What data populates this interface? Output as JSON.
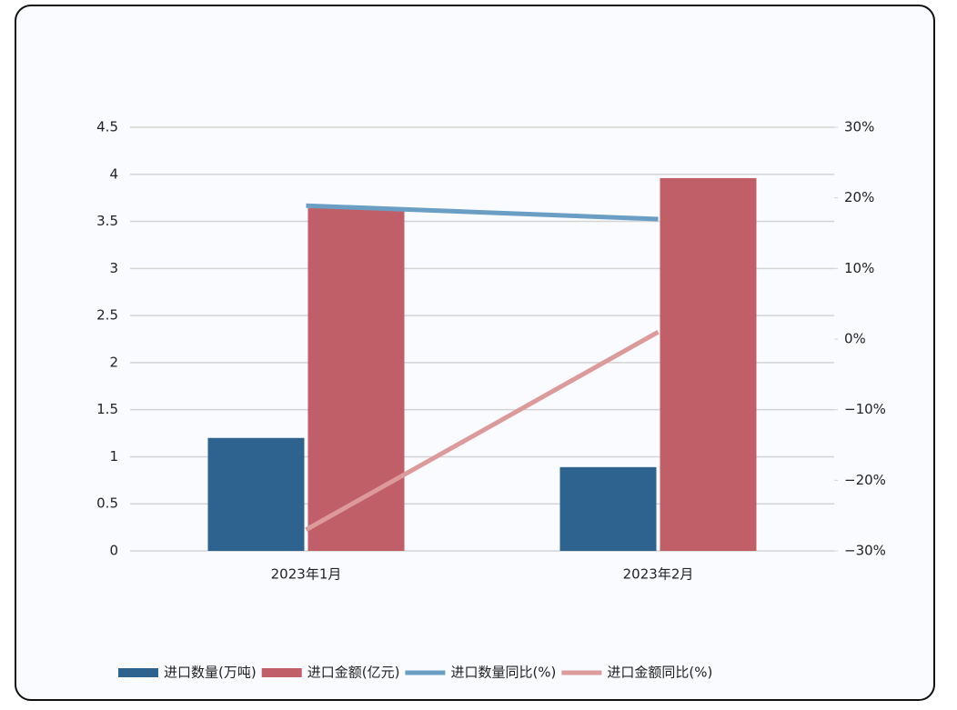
{
  "chart_data": {
    "type": "bar-line",
    "categories": [
      "2023年1月",
      "2023年2月"
    ],
    "series": [
      {
        "name": "进口数量(万吨)",
        "type": "bar",
        "color": "#2e6390",
        "values": [
          1.2,
          0.89
        ]
      },
      {
        "name": "进口金额(亿元)",
        "type": "bar",
        "color": "#c05f67",
        "values": [
          3.64,
          3.96
        ]
      },
      {
        "name": "进口数量同比(%)",
        "type": "line",
        "axis": "y2",
        "color": "#6a9ec5",
        "values": [
          18.9,
          17.0
        ]
      },
      {
        "name": "进口金额同比(%)",
        "type": "line",
        "axis": "y2",
        "color": "#dc9a9a",
        "values": [
          -27.0,
          1.0
        ]
      }
    ],
    "ylim": [
      0,
      4.5
    ],
    "yticks": [
      0,
      0.5,
      1,
      1.5,
      2,
      2.5,
      3,
      3.5,
      4,
      4.5
    ],
    "y2lim": [
      -30,
      30
    ],
    "y2ticks": [
      {
        "value": -30,
        "label": "−30%"
      },
      {
        "value": -20,
        "label": "−20%"
      },
      {
        "value": -10,
        "label": "−10%"
      },
      {
        "value": 0,
        "label": "0%"
      },
      {
        "value": 10,
        "label": "10%"
      },
      {
        "value": 20,
        "label": "20%"
      },
      {
        "value": 30,
        "label": "30%"
      }
    ],
    "grid": true,
    "legend": "bottom"
  }
}
